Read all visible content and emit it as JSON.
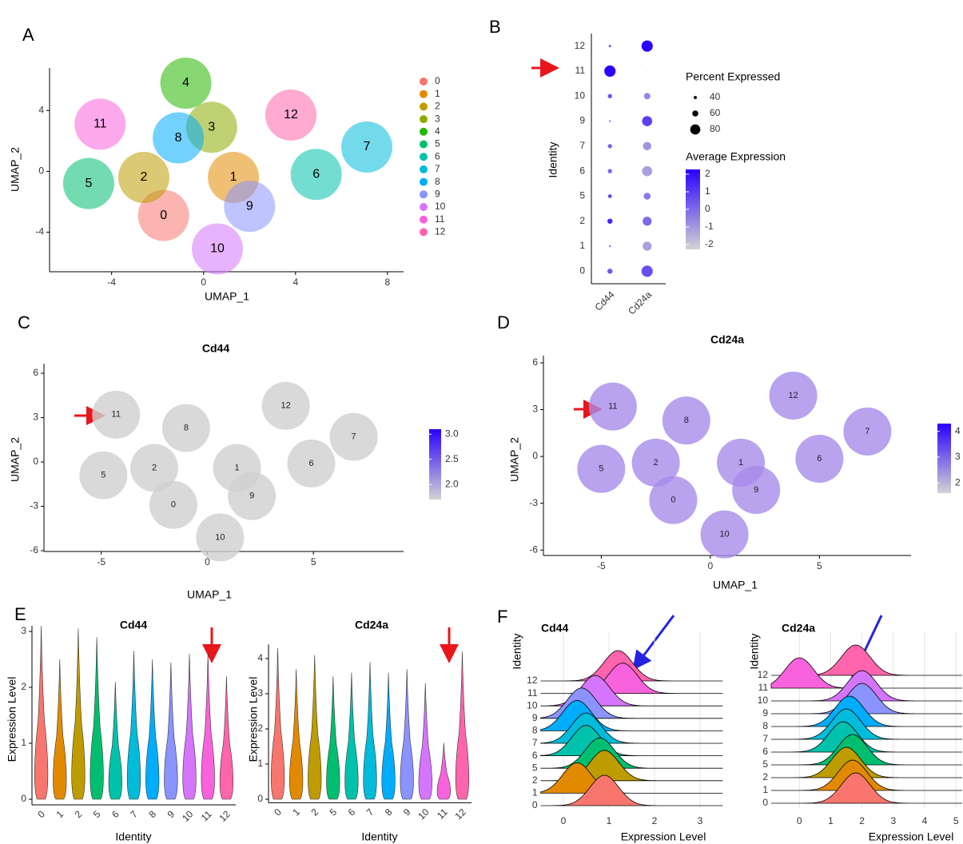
{
  "chart_data": [
    {
      "type": "umap",
      "panel": "A",
      "xlabel": "UMAP_1",
      "ylabel": "UMAP_2",
      "xlim": [
        -6.7,
        8.7
      ],
      "ylim": [
        -6.6,
        6.8
      ],
      "xticks": [
        -4,
        0,
        4,
        8
      ],
      "yticks": [
        -4,
        0,
        4
      ],
      "categories": [
        "0",
        "1",
        "2",
        "3",
        "4",
        "5",
        "6",
        "7",
        "8",
        "9",
        "10",
        "11",
        "12"
      ],
      "x": [
        -1.74,
        1.3,
        -2.6,
        0.35,
        -0.77,
        -5.0,
        4.9,
        7.1,
        -1.1,
        2.0,
        0.6,
        -4.5,
        3.8
      ],
      "values": [
        -2.9,
        -0.4,
        -0.4,
        2.9,
        5.8,
        -0.8,
        -0.2,
        1.6,
        2.2,
        -2.3,
        -5.1,
        3.1,
        3.7
      ],
      "colors": [
        "#F8766D",
        "#E18A00",
        "#BE9C00",
        "#8CAB00",
        "#24B700",
        "#00BE70",
        "#00C1AB",
        "#00BBDA",
        "#00ACFC",
        "#8B93FF",
        "#D575FE",
        "#F962DD",
        "#FF65AC"
      ]
    },
    {
      "type": "dot",
      "panel": "B",
      "ylabel": "Identity",
      "categories": [
        "0",
        "1",
        "2",
        "5",
        "6",
        "7",
        "9",
        "10",
        "11",
        "12"
      ],
      "series": [
        {
          "name": "Cd44",
          "values": [
            55,
            30,
            55,
            45,
            50,
            50,
            30,
            50,
            85,
            35
          ],
          "avg": [
            0.3,
            -0.5,
            1.3,
            0.8,
            0,
            0,
            -0.8,
            0.3,
            2,
            0
          ]
        },
        {
          "name": "Cd24a",
          "values": [
            85,
            75,
            75,
            65,
            80,
            72,
            80,
            62,
            5,
            85
          ],
          "avg": [
            0.5,
            -1,
            0,
            -0.3,
            -1,
            -0.8,
            0.8,
            -0.5,
            -2,
            2
          ]
        }
      ],
      "size_title": "Percent Expressed",
      "size_ticks": [
        40,
        60,
        80
      ],
      "color_title": "Average Expression",
      "color_lim": [
        -2,
        2
      ],
      "color_ticks": [
        2,
        1,
        0,
        -1,
        -2
      ],
      "color_low": "#d3d3d3",
      "color_high": "#2a00ff"
    },
    {
      "type": "feature",
      "panel": "C",
      "title": "Cd44",
      "xlabel": "UMAP_1",
      "ylabel": "UMAP_2",
      "xlim": [
        -7.7,
        9.25
      ],
      "ylim": [
        -6.05,
        6.65
      ],
      "xticks": [
        -5,
        0,
        5
      ],
      "yticks": [
        -6,
        -3,
        0,
        3,
        6
      ],
      "categories": [
        "11",
        "8",
        "12",
        "7",
        "2",
        "5",
        "1",
        "6",
        "9",
        "0",
        "10"
      ],
      "x": [
        -4.3,
        -1.0,
        3.7,
        6.9,
        -2.5,
        -4.9,
        1.4,
        4.9,
        2.1,
        -1.6,
        0.6
      ],
      "values": [
        3.2,
        2.3,
        3.8,
        1.7,
        -0.4,
        -0.9,
        -0.4,
        -0.1,
        -2.3,
        -2.9,
        -5.1
      ],
      "point_color": "#d0d0d0",
      "color_lim": [
        1.7,
        3.1
      ],
      "color_ticks": [
        {
          "value": 3,
          "label": "3.0"
        },
        2.5,
        {
          "value": 2,
          "label": "2.0"
        }
      ],
      "color_low": "#d3d3d3",
      "color_high": "#2a00ff"
    },
    {
      "type": "feature",
      "panel": "D",
      "title": "Cd24a",
      "xlabel": "UMAP_1",
      "ylabel": "UMAP_2",
      "xlim": [
        -7.65,
        9.2
      ],
      "ylim": [
        -6.35,
        6.46
      ],
      "xticks": [
        -5,
        0,
        5
      ],
      "yticks": [
        -6,
        -3,
        0,
        3,
        6
      ],
      "categories": [
        "11",
        "8",
        "12",
        "7",
        "2",
        "5",
        "1",
        "6",
        "9",
        "0",
        "10"
      ],
      "x": [
        -4.47,
        -1.1,
        3.8,
        7.2,
        -2.5,
        -5.0,
        1.4,
        5.0,
        2.1,
        -1.7,
        0.65
      ],
      "values": [
        3.2,
        2.3,
        3.9,
        1.6,
        -0.4,
        -0.8,
        -0.4,
        -0.15,
        -2.15,
        -2.8,
        -5.0
      ],
      "point_color": "#a78bea",
      "color_lim": [
        1.6,
        4.3
      ],
      "color_ticks": [
        4,
        3,
        2
      ],
      "color_low": "#d3d3d3",
      "color_high": "#2a00ff"
    },
    {
      "type": "violin",
      "panel": "E",
      "title": "Cd44",
      "xlabel": "Identity",
      "ylabel": "Expression Level",
      "ylim": [
        -0.1,
        3.1
      ],
      "yticks": [
        0,
        1,
        2,
        3
      ],
      "categories": [
        "0",
        "1",
        "2",
        "5",
        "6",
        "7",
        "8",
        "9",
        "10",
        "11",
        "12"
      ],
      "values": [
        3.1,
        2.5,
        3.05,
        2.9,
        2.1,
        2.65,
        2.5,
        2.45,
        2.6,
        2.6,
        2.2
      ],
      "colors": [
        "#F8766D",
        "#E18A00",
        "#BE9C00",
        "#00BE70",
        "#00C1AB",
        "#00BBDA",
        "#00ACFC",
        "#8B93FF",
        "#D575FE",
        "#F962DD",
        "#FF65AC"
      ]
    },
    {
      "type": "violin",
      "title": "Cd24a",
      "xlabel": "Identity",
      "ylabel": "Expression Level",
      "ylim": [
        -0.1,
        4.4
      ],
      "yticks": [
        0,
        1,
        2,
        3,
        4
      ],
      "categories": [
        "0",
        "1",
        "2",
        "5",
        "6",
        "7",
        "8",
        "9",
        "10",
        "11",
        "12"
      ],
      "values": [
        4.3,
        3.7,
        4.1,
        3.5,
        3.6,
        3.9,
        3.6,
        3.7,
        3.3,
        1.6,
        4.2
      ],
      "colors": [
        "#F8766D",
        "#E18A00",
        "#BE9C00",
        "#00BE70",
        "#00C1AB",
        "#00BBDA",
        "#00ACFC",
        "#8B93FF",
        "#D575FE",
        "#F962DD",
        "#FF65AC"
      ]
    },
    {
      "type": "ridge",
      "panel": "F",
      "title": "Cd44",
      "xlabel": "Expression Level",
      "ylabel": "Identity",
      "xlim": [
        -0.5,
        3.5
      ],
      "xticks": [
        0,
        1,
        2,
        3
      ],
      "categories": [
        "0",
        "1",
        "2",
        "5",
        "6",
        "7",
        "8",
        "9",
        "10",
        "11",
        "12"
      ],
      "values": [
        0.9,
        0.3,
        0.9,
        0.8,
        0.5,
        0.5,
        0.3,
        0.4,
        0.7,
        1.3,
        1.2
      ],
      "colors": [
        "#F8766D",
        "#E18A00",
        "#BE9C00",
        "#00BE70",
        "#00C1AB",
        "#00BBDA",
        "#00ACFC",
        "#8B93FF",
        "#D575FE",
        "#F962DD",
        "#FF65AC"
      ]
    },
    {
      "type": "ridge",
      "title": "Cd24a",
      "xlabel": "Expression Level",
      "ylabel": "Identity",
      "xlim": [
        -0.9,
        5.2
      ],
      "xticks": [
        0,
        1,
        2,
        3,
        4,
        5
      ],
      "categories": [
        "0",
        "1",
        "2",
        "5",
        "6",
        "7",
        "8",
        "9",
        "10",
        "11",
        "12"
      ],
      "values": [
        1.8,
        1.7,
        1.5,
        1.7,
        1.4,
        1.5,
        1.6,
        2.0,
        2.0,
        0,
        1.8
      ],
      "colors": [
        "#F8766D",
        "#E18A00",
        "#BE9C00",
        "#00BE70",
        "#00C1AB",
        "#00BBDA",
        "#00ACFC",
        "#8B93FF",
        "#D575FE",
        "#F962DD",
        "#FF65AC"
      ]
    }
  ]
}
